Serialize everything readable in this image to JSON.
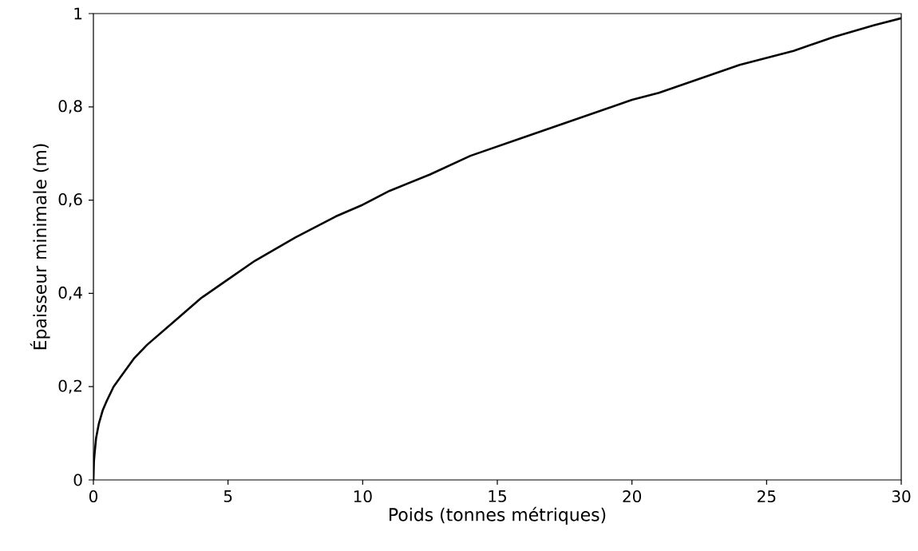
{
  "chart_data": {
    "type": "line",
    "xlabel": "Poids (tonnes métriques)",
    "ylabel": "Épaisseur minimale (m)",
    "x": [
      0,
      0.02,
      0.05,
      0.1,
      0.2,
      0.35,
      0.5,
      0.75,
      1,
      1.5,
      2,
      3,
      4,
      5,
      6,
      7.5,
      9,
      10,
      11,
      12.5,
      14,
      15,
      16,
      17.5,
      19,
      20,
      21,
      22.5,
      24,
      25,
      26,
      27.5,
      29,
      30
    ],
    "values": [
      0,
      0.04,
      0.06,
      0.09,
      0.12,
      0.15,
      0.17,
      0.2,
      0.22,
      0.26,
      0.29,
      0.34,
      0.39,
      0.43,
      0.47,
      0.52,
      0.565,
      0.59,
      0.62,
      0.655,
      0.695,
      0.715,
      0.735,
      0.765,
      0.795,
      0.815,
      0.83,
      0.86,
      0.89,
      0.905,
      0.92,
      0.95,
      0.975,
      0.99
    ],
    "color": "#000000",
    "marker": "none",
    "line_style": "solid",
    "xlim": [
      0,
      30
    ],
    "ylim": [
      0,
      1
    ],
    "xticks": [
      0,
      5,
      10,
      15,
      20,
      25,
      30
    ],
    "yticks": [
      0,
      {
        "value": 0.2,
        "label": "0,2"
      },
      {
        "value": 0.4,
        "label": "0,4"
      },
      {
        "value": 0.6,
        "label": "0,6"
      },
      {
        "value": 0.8,
        "label": "0,8"
      },
      1
    ]
  }
}
